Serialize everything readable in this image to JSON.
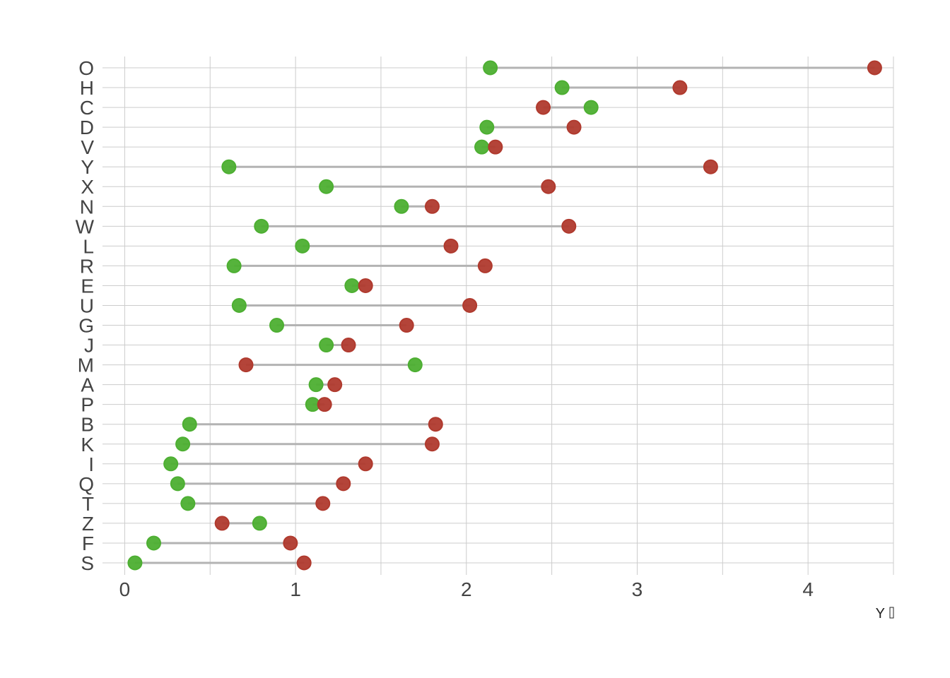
{
  "chart_data": {
    "type": "dumbbell",
    "categories": [
      "O",
      "H",
      "C",
      "D",
      "V",
      "Y",
      "X",
      "N",
      "W",
      "L",
      "R",
      "E",
      "U",
      "G",
      "J",
      "M",
      "A",
      "P",
      "B",
      "K",
      "I",
      "Q",
      "T",
      "Z",
      "F",
      "S"
    ],
    "series": [
      {
        "color": "#4daf32",
        "values": [
          2.14,
          2.56,
          2.73,
          2.12,
          2.09,
          0.61,
          1.18,
          1.62,
          0.8,
          1.04,
          0.64,
          1.33,
          0.67,
          0.89,
          1.18,
          1.7,
          1.12,
          1.1,
          0.38,
          0.34,
          0.27,
          0.31,
          0.37,
          0.79,
          0.17,
          0.06
        ]
      },
      {
        "color": "#b03a2e",
        "values": [
          4.39,
          3.25,
          2.45,
          2.63,
          2.17,
          3.43,
          2.48,
          1.8,
          2.6,
          1.91,
          2.11,
          1.41,
          2.02,
          1.65,
          1.31,
          0.71,
          1.23,
          1.17,
          1.82,
          1.8,
          1.41,
          1.28,
          1.16,
          0.57,
          0.97,
          1.05
        ]
      }
    ],
    "segment_color": "#b3b3b3",
    "x_ticks": [
      0,
      1,
      2,
      3,
      4
    ],
    "xlim": [
      -0.13,
      4.5
    ],
    "xlabel": "Y",
    "ylabel": "",
    "title": "",
    "grid": true,
    "legend": "none"
  }
}
